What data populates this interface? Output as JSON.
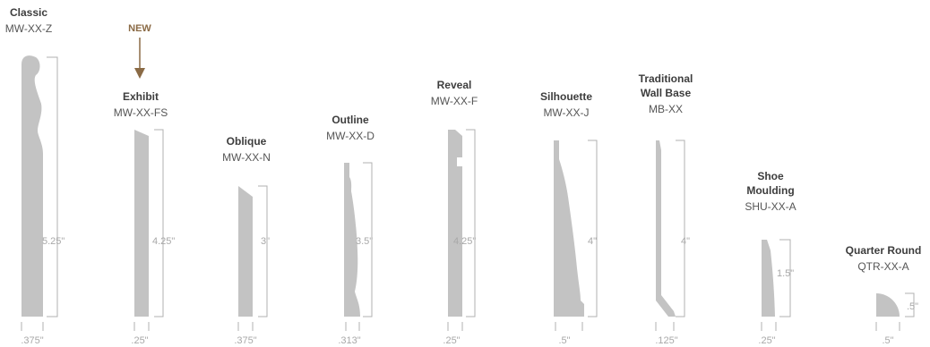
{
  "profiles": [
    {
      "name": "Classic",
      "code": "MW-XX-Z",
      "height": "5.25\"",
      "width": ".375\""
    },
    {
      "name": "Exhibit",
      "code": "MW-XX-FS",
      "height": "4.25\"",
      "width": ".25\"",
      "tag": "NEW"
    },
    {
      "name": "Oblique",
      "code": "MW-XX-N",
      "height": "3\"",
      "width": ".375\""
    },
    {
      "name": "Outline",
      "code": "MW-XX-D",
      "height": "3.5\"",
      "width": ".313\""
    },
    {
      "name": "Reveal",
      "code": "MW-XX-F",
      "height": "4.25\"",
      "width": ".25\""
    },
    {
      "name": "Silhouette",
      "code": "MW-XX-J",
      "height": "4\"",
      "width": ".5\""
    },
    {
      "name_lines": [
        "Traditional",
        "Wall Base"
      ],
      "code": "MB-XX",
      "height": "4\"",
      "width": ".125\""
    },
    {
      "name_lines": [
        "Shoe",
        "Moulding"
      ],
      "code": "SHU-XX-A",
      "height": "1.5\"",
      "width": ".25\""
    },
    {
      "name": "Quarter Round",
      "code": "QTR-XX-A",
      "height": ".5\"",
      "width": ".5\""
    }
  ],
  "colors": {
    "profile": "#c3c3c3",
    "dimension": "#b0b0b0",
    "tag": "#8a6a45"
  }
}
